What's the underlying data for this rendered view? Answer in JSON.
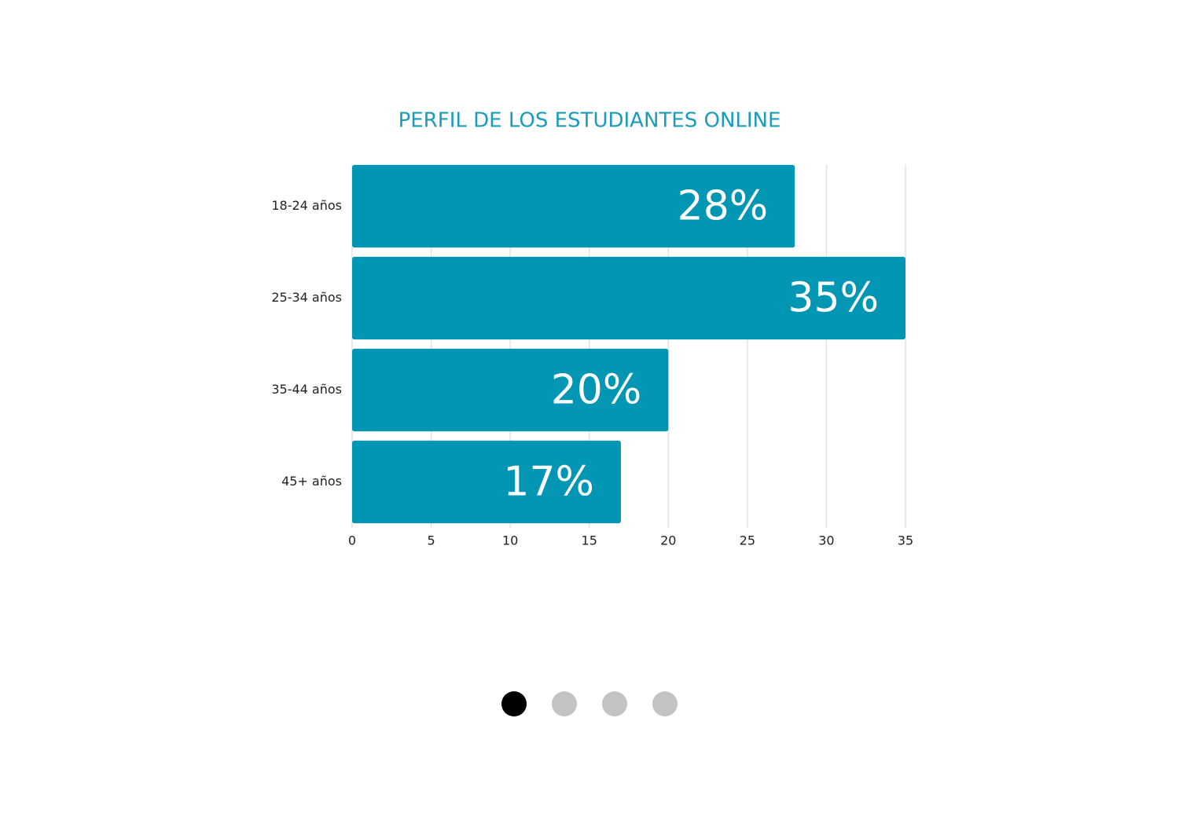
{
  "chart_data": {
    "type": "hbar",
    "title": "PERFIL DE LOS ESTUDIANTES ONLINE",
    "categories": [
      "18-24 años",
      "25-34 años",
      "35-44 años",
      "45+ años"
    ],
    "values": [
      28,
      35,
      20,
      17
    ],
    "value_labels": [
      "28%",
      "35%",
      "20%",
      "17%"
    ],
    "color": "#0096b4",
    "xlim": [
      0,
      35
    ],
    "xticks": [
      0,
      5,
      10,
      15,
      20,
      25,
      30,
      35
    ],
    "grid": true
  }
}
